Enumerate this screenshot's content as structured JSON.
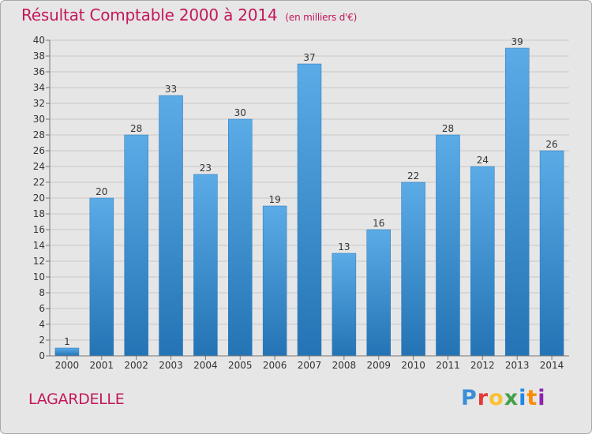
{
  "chart_data": {
    "type": "bar",
    "title": "Résultat Comptable 2000 à 2014",
    "subtitle": "(en milliers d'€)",
    "categories": [
      "2000",
      "2001",
      "2002",
      "2003",
      "2004",
      "2005",
      "2006",
      "2007",
      "2008",
      "2009",
      "2010",
      "2011",
      "2012",
      "2013",
      "2014"
    ],
    "values": [
      1,
      20,
      28,
      33,
      23,
      30,
      19,
      37,
      13,
      16,
      22,
      28,
      24,
      39,
      26
    ],
    "ylim": [
      0,
      40
    ],
    "ytick_step": 2,
    "xlabel": "",
    "ylabel": "",
    "grid": true,
    "bar_color": "#3f8fd0"
  },
  "commune": "LAGARDELLE",
  "brand": {
    "name": "Proxiti",
    "letters": [
      {
        "char": "P",
        "color": "#3a8fd6"
      },
      {
        "char": "r",
        "color": "#e53935"
      },
      {
        "char": "o",
        "color": "#fbc02d"
      },
      {
        "char": "x",
        "color": "#43a047"
      },
      {
        "char": "i",
        "color": "#1e88e5"
      },
      {
        "char": "t",
        "color": "#fb8c00"
      },
      {
        "char": "i",
        "color": "#8e24aa"
      }
    ]
  }
}
